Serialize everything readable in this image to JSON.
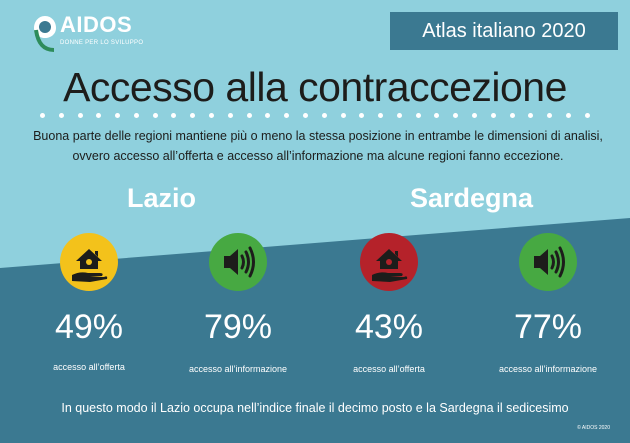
{
  "brand": {
    "name": "AIDOS",
    "tagline": "DONNE PER LO SVILUPPO"
  },
  "header": {
    "atlas": "Atlas italiano 2020"
  },
  "title": "Accesso alla contraccezione",
  "intro": "Buona parte delle regioni mantiene più o meno la stessa posizione in entrambe le dimensioni di analisi, ovvero accesso all’offerta e accesso all’informazione ma alcune regioni fanno eccezione.",
  "regions": [
    {
      "name": "Lazio",
      "metrics": [
        {
          "value": "49%",
          "label": "accesso all’offerta",
          "icon": "house-hand-icon",
          "color": "#f3c21b"
        },
        {
          "value": "79%",
          "label": "accesso all’informazione",
          "icon": "speaker-icon",
          "color": "#47a942"
        }
      ]
    },
    {
      "name": "Sardegna",
      "metrics": [
        {
          "value": "43%",
          "label": "accesso all’offerta",
          "icon": "house-hand-icon",
          "color": "#b5222a"
        },
        {
          "value": "77%",
          "label": "accesso all’informazione",
          "icon": "speaker-icon",
          "color": "#47a942"
        }
      ]
    }
  ],
  "footer": "In questo modo il Lazio occupa nell’indice finale il decimo posto e la Sardegna il sedicesimo",
  "copyright": "© AIDOS 2020"
}
